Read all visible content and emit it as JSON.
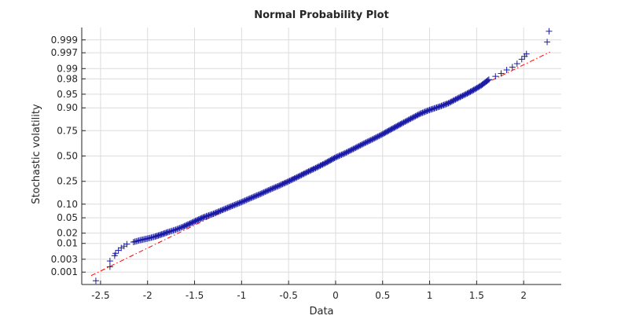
{
  "chart_data": {
    "type": "scatter",
    "title": "Normal Probability Plot",
    "xlabel": "Data",
    "ylabel": "Stochastic volatility",
    "xlim": [
      -2.7,
      2.4
    ],
    "x_ticks": [
      -2.5,
      -2,
      -1.5,
      -1,
      -0.5,
      0,
      0.5,
      1,
      1.5,
      2
    ],
    "x_tick_labels": [
      "-2.5",
      "-2",
      "-1.5",
      "-1",
      "-0.5",
      "0",
      "0.5",
      "1",
      "1.5",
      "2"
    ],
    "y_scale": "normal-probability",
    "y_ticks": [
      0.001,
      0.003,
      0.01,
      0.02,
      0.05,
      0.1,
      0.25,
      0.5,
      0.75,
      0.9,
      0.95,
      0.98,
      0.99,
      0.997,
      0.999
    ],
    "y_tick_labels": [
      "0.001",
      "0.003",
      "0.01",
      "0.02",
      "0.05",
      "0.10",
      "0.25",
      "0.50",
      "0.75",
      "0.90",
      "0.95",
      "0.98",
      "0.99",
      "0.997",
      "0.999"
    ],
    "grid": true,
    "series": [
      {
        "marker": "plus",
        "color": "#0000ff",
        "points": [
          [
            -2.55,
            0.00045
          ],
          [
            -2.4,
            0.0016
          ],
          [
            -2.4,
            0.0026
          ],
          [
            -2.35,
            0.004
          ],
          [
            -2.34,
            0.0048
          ],
          [
            -2.31,
            0.006
          ],
          [
            -2.28,
            0.0072
          ],
          [
            -2.25,
            0.0082
          ],
          [
            -2.22,
            0.0095
          ],
          [
            -2.15,
            0.011
          ],
          [
            -2.08,
            0.0125
          ],
          [
            -2.0,
            0.014
          ],
          [
            -1.92,
            0.016
          ],
          [
            -1.85,
            0.0185
          ],
          [
            -1.78,
            0.0215
          ],
          [
            -1.7,
            0.025
          ],
          [
            -1.62,
            0.03
          ],
          [
            -1.55,
            0.036
          ],
          [
            -1.48,
            0.043
          ],
          [
            -1.4,
            0.052
          ],
          [
            -1.3,
            0.062
          ],
          [
            -1.2,
            0.076
          ],
          [
            -1.1,
            0.092
          ],
          [
            -1.0,
            0.11
          ],
          [
            -0.9,
            0.132
          ],
          [
            -0.8,
            0.156
          ],
          [
            -0.7,
            0.185
          ],
          [
            -0.6,
            0.215
          ],
          [
            -0.5,
            0.25
          ],
          [
            -0.4,
            0.29
          ],
          [
            -0.3,
            0.335
          ],
          [
            -0.2,
            0.38
          ],
          [
            -0.1,
            0.43
          ],
          [
            0.0,
            0.485
          ],
          [
            0.1,
            0.53
          ],
          [
            0.2,
            0.58
          ],
          [
            0.3,
            0.63
          ],
          [
            0.4,
            0.675
          ],
          [
            0.5,
            0.72
          ],
          [
            0.6,
            0.765
          ],
          [
            0.7,
            0.805
          ],
          [
            0.8,
            0.84
          ],
          [
            0.9,
            0.87
          ],
          [
            1.0,
            0.89
          ],
          [
            1.1,
            0.905
          ],
          [
            1.2,
            0.92
          ],
          [
            1.3,
            0.938
          ],
          [
            1.4,
            0.952
          ],
          [
            1.48,
            0.962
          ],
          [
            1.55,
            0.97
          ],
          [
            1.6,
            0.976
          ],
          [
            1.63,
            0.979
          ],
          [
            1.7,
            0.983
          ],
          [
            1.76,
            0.986
          ],
          [
            1.82,
            0.989
          ],
          [
            1.88,
            0.991
          ],
          [
            1.93,
            0.993
          ],
          [
            1.98,
            0.995
          ],
          [
            2.01,
            0.996
          ],
          [
            2.03,
            0.9967
          ],
          [
            2.25,
            0.9988
          ],
          [
            2.27,
            0.99955
          ]
        ]
      },
      {
        "type": "reference-line",
        "style": "dash-dot",
        "color": "#ff0000",
        "mean": 0.01,
        "std": 0.82
      }
    ]
  }
}
